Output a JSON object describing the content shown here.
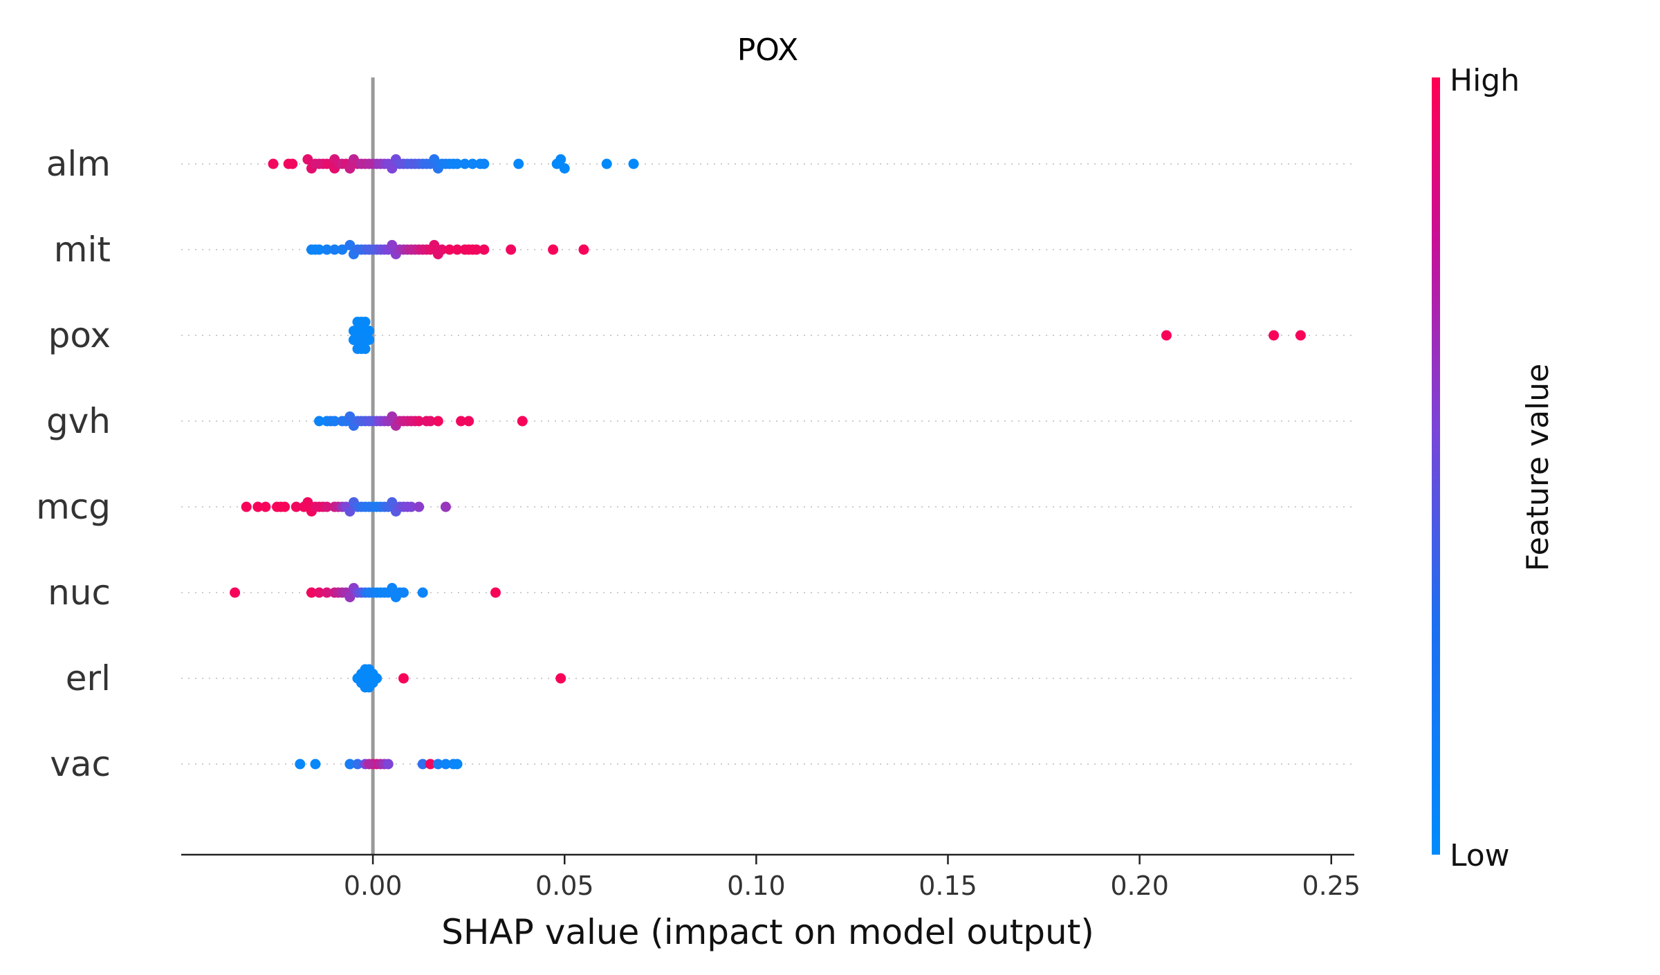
{
  "chart_data": {
    "type": "scatter",
    "subtype": "shap-beeswarm",
    "title": "POX",
    "xlabel": "SHAP value (impact on model output)",
    "xlim": [
      -0.05,
      0.256
    ],
    "xticks": [
      "0.00",
      "0.05",
      "0.10",
      "0.15",
      "0.20",
      "0.25"
    ],
    "xtick_values": [
      0.0,
      0.05,
      0.1,
      0.15,
      0.2,
      0.25
    ],
    "zero_line": 0.0,
    "colorbar": {
      "label": "Feature value",
      "high_label": "High",
      "low_label": "Low",
      "high_color": "#ff0052",
      "low_color": "#008bfb"
    },
    "features": [
      {
        "name": "alm",
        "points": [
          [
            -0.026,
            0.95
          ],
          [
            -0.022,
            0.95
          ],
          [
            -0.021,
            0.95
          ],
          [
            -0.017,
            0.9
          ],
          [
            -0.016,
            0.9
          ],
          [
            -0.015,
            0.85
          ],
          [
            -0.014,
            0.85
          ],
          [
            -0.013,
            0.85
          ],
          [
            -0.012,
            0.9
          ],
          [
            -0.011,
            0.9
          ],
          [
            -0.01,
            0.85
          ],
          [
            -0.01,
            0.9
          ],
          [
            -0.009,
            0.85
          ],
          [
            -0.008,
            0.8
          ],
          [
            -0.007,
            0.85
          ],
          [
            -0.006,
            0.8
          ],
          [
            -0.005,
            0.75
          ],
          [
            -0.004,
            0.8
          ],
          [
            -0.003,
            0.7
          ],
          [
            -0.002,
            0.75
          ],
          [
            -0.001,
            0.7
          ],
          [
            0.0,
            0.65
          ],
          [
            0.001,
            0.6
          ],
          [
            0.002,
            0.6
          ],
          [
            0.003,
            0.55
          ],
          [
            0.004,
            0.5
          ],
          [
            0.005,
            0.5
          ],
          [
            0.006,
            0.45
          ],
          [
            0.007,
            0.4
          ],
          [
            0.008,
            0.4
          ],
          [
            0.009,
            0.35
          ],
          [
            0.01,
            0.3
          ],
          [
            0.011,
            0.35
          ],
          [
            0.012,
            0.3
          ],
          [
            0.013,
            0.25
          ],
          [
            0.014,
            0.2
          ],
          [
            0.015,
            0.2
          ],
          [
            0.016,
            0.15
          ],
          [
            0.017,
            0.15
          ],
          [
            0.018,
            0.1
          ],
          [
            0.019,
            0.1
          ],
          [
            0.02,
            0.08
          ],
          [
            0.021,
            0.05
          ],
          [
            0.022,
            0.05
          ],
          [
            0.024,
            0.05
          ],
          [
            0.026,
            0.05
          ],
          [
            0.028,
            0.05
          ],
          [
            0.029,
            0.05
          ],
          [
            0.038,
            0.03
          ],
          [
            0.048,
            0.02
          ],
          [
            0.049,
            0.02
          ],
          [
            0.05,
            0.02
          ],
          [
            0.061,
            0.01
          ],
          [
            0.068,
            0.01
          ]
        ]
      },
      {
        "name": "mit",
        "points": [
          [
            -0.016,
            0.05
          ],
          [
            -0.015,
            0.05
          ],
          [
            -0.014,
            0.05
          ],
          [
            -0.012,
            0.08
          ],
          [
            -0.01,
            0.1
          ],
          [
            -0.008,
            0.1
          ],
          [
            -0.006,
            0.15
          ],
          [
            -0.005,
            0.15
          ],
          [
            -0.004,
            0.2
          ],
          [
            -0.003,
            0.2
          ],
          [
            -0.002,
            0.25
          ],
          [
            -0.001,
            0.3
          ],
          [
            0.0,
            0.35
          ],
          [
            0.001,
            0.35
          ],
          [
            0.002,
            0.4
          ],
          [
            0.003,
            0.45
          ],
          [
            0.004,
            0.5
          ],
          [
            0.005,
            0.55
          ],
          [
            0.006,
            0.55
          ],
          [
            0.007,
            0.6
          ],
          [
            0.008,
            0.65
          ],
          [
            0.009,
            0.7
          ],
          [
            0.01,
            0.75
          ],
          [
            0.011,
            0.75
          ],
          [
            0.012,
            0.8
          ],
          [
            0.013,
            0.85
          ],
          [
            0.014,
            0.85
          ],
          [
            0.015,
            0.9
          ],
          [
            0.016,
            0.9
          ],
          [
            0.017,
            0.9
          ],
          [
            0.018,
            0.9
          ],
          [
            0.02,
            0.95
          ],
          [
            0.022,
            0.95
          ],
          [
            0.024,
            0.95
          ],
          [
            0.025,
            0.95
          ],
          [
            0.026,
            0.95
          ],
          [
            0.027,
            0.95
          ],
          [
            0.029,
            0.95
          ],
          [
            0.036,
            0.95
          ],
          [
            0.047,
            0.97
          ],
          [
            0.055,
            0.97
          ]
        ]
      },
      {
        "name": "pox",
        "points": [
          [
            -0.005,
            0.02
          ],
          [
            -0.004,
            0.02
          ],
          [
            -0.003,
            0.02
          ],
          [
            -0.002,
            0.02
          ],
          [
            -0.001,
            0.02
          ],
          [
            -0.004,
            0.03
          ],
          [
            -0.003,
            0.03
          ],
          [
            -0.002,
            0.03
          ],
          [
            -0.005,
            0.02
          ],
          [
            -0.004,
            0.02
          ],
          [
            -0.003,
            0.02
          ],
          [
            -0.002,
            0.02
          ],
          [
            -0.001,
            0.02
          ],
          [
            -0.004,
            0.03
          ],
          [
            -0.003,
            0.03
          ],
          [
            -0.002,
            0.03
          ],
          [
            0.207,
            0.97
          ],
          [
            0.235,
            0.97
          ],
          [
            0.242,
            0.97
          ]
        ]
      },
      {
        "name": "gvh",
        "points": [
          [
            -0.014,
            0.05
          ],
          [
            -0.012,
            0.05
          ],
          [
            -0.011,
            0.1
          ],
          [
            -0.01,
            0.1
          ],
          [
            -0.008,
            0.15
          ],
          [
            -0.007,
            0.15
          ],
          [
            -0.006,
            0.2
          ],
          [
            -0.005,
            0.2
          ],
          [
            -0.004,
            0.25
          ],
          [
            -0.003,
            0.3
          ],
          [
            -0.002,
            0.3
          ],
          [
            -0.001,
            0.35
          ],
          [
            0.0,
            0.4
          ],
          [
            0.001,
            0.45
          ],
          [
            0.002,
            0.5
          ],
          [
            0.003,
            0.55
          ],
          [
            0.004,
            0.6
          ],
          [
            0.005,
            0.65
          ],
          [
            0.006,
            0.7
          ],
          [
            0.007,
            0.75
          ],
          [
            0.008,
            0.8
          ],
          [
            0.009,
            0.8
          ],
          [
            0.01,
            0.85
          ],
          [
            0.011,
            0.85
          ],
          [
            0.012,
            0.9
          ],
          [
            0.014,
            0.9
          ],
          [
            0.015,
            0.9
          ],
          [
            0.017,
            0.95
          ],
          [
            0.023,
            0.95
          ],
          [
            0.025,
            0.95
          ],
          [
            0.039,
            0.97
          ]
        ]
      },
      {
        "name": "mcg",
        "points": [
          [
            -0.033,
            0.97
          ],
          [
            -0.03,
            0.97
          ],
          [
            -0.028,
            0.97
          ],
          [
            -0.025,
            0.97
          ],
          [
            -0.024,
            0.97
          ],
          [
            -0.023,
            0.97
          ],
          [
            -0.02,
            0.95
          ],
          [
            -0.018,
            0.95
          ],
          [
            -0.017,
            0.95
          ],
          [
            -0.016,
            0.95
          ],
          [
            -0.015,
            0.9
          ],
          [
            -0.014,
            0.9
          ],
          [
            -0.013,
            0.9
          ],
          [
            -0.012,
            0.85
          ],
          [
            -0.01,
            0.8
          ],
          [
            -0.009,
            0.75
          ],
          [
            -0.008,
            0.6
          ],
          [
            -0.007,
            0.5
          ],
          [
            -0.006,
            0.4
          ],
          [
            -0.005,
            0.3
          ],
          [
            -0.004,
            0.25
          ],
          [
            -0.003,
            0.2
          ],
          [
            -0.002,
            0.15
          ],
          [
            -0.001,
            0.15
          ],
          [
            0.0,
            0.1
          ],
          [
            0.001,
            0.1
          ],
          [
            0.002,
            0.15
          ],
          [
            0.003,
            0.2
          ],
          [
            0.004,
            0.25
          ],
          [
            0.005,
            0.3
          ],
          [
            0.006,
            0.35
          ],
          [
            0.007,
            0.4
          ],
          [
            0.008,
            0.45
          ],
          [
            0.009,
            0.5
          ],
          [
            0.01,
            0.5
          ],
          [
            0.012,
            0.55
          ],
          [
            0.019,
            0.6
          ]
        ]
      },
      {
        "name": "nuc",
        "points": [
          [
            -0.036,
            0.97
          ],
          [
            -0.016,
            0.95
          ],
          [
            -0.014,
            0.9
          ],
          [
            -0.012,
            0.85
          ],
          [
            -0.01,
            0.8
          ],
          [
            -0.009,
            0.75
          ],
          [
            -0.008,
            0.7
          ],
          [
            -0.007,
            0.65
          ],
          [
            -0.006,
            0.6
          ],
          [
            -0.005,
            0.55
          ],
          [
            -0.004,
            0.45
          ],
          [
            -0.003,
            0.35
          ],
          [
            -0.002,
            0.2
          ],
          [
            -0.001,
            0.1
          ],
          [
            0.0,
            0.05
          ],
          [
            0.001,
            0.05
          ],
          [
            0.002,
            0.05
          ],
          [
            0.003,
            0.05
          ],
          [
            0.004,
            0.05
          ],
          [
            0.005,
            0.05
          ],
          [
            0.006,
            0.05
          ],
          [
            0.007,
            0.05
          ],
          [
            0.008,
            0.05
          ],
          [
            0.013,
            0.05
          ],
          [
            0.032,
            0.97
          ]
        ]
      },
      {
        "name": "erl",
        "points": [
          [
            -0.004,
            0.02
          ],
          [
            -0.003,
            0.02
          ],
          [
            -0.002,
            0.02
          ],
          [
            -0.001,
            0.02
          ],
          [
            0.0,
            0.02
          ],
          [
            0.001,
            0.02
          ],
          [
            -0.003,
            0.03
          ],
          [
            -0.002,
            0.03
          ],
          [
            -0.001,
            0.03
          ],
          [
            0.0,
            0.03
          ],
          [
            -0.002,
            0.02
          ],
          [
            -0.001,
            0.02
          ],
          [
            0.008,
            0.97
          ],
          [
            0.049,
            0.97
          ]
        ]
      },
      {
        "name": "vac",
        "points": [
          [
            -0.019,
            0.03
          ],
          [
            -0.015,
            0.03
          ],
          [
            -0.006,
            0.1
          ],
          [
            -0.004,
            0.2
          ],
          [
            -0.002,
            0.5
          ],
          [
            -0.001,
            0.7
          ],
          [
            0.0,
            0.85
          ],
          [
            0.001,
            0.8
          ],
          [
            0.002,
            0.7
          ],
          [
            0.003,
            0.6
          ],
          [
            0.004,
            0.5
          ],
          [
            0.013,
            0.2
          ],
          [
            0.015,
            0.95
          ],
          [
            0.017,
            0.1
          ],
          [
            0.019,
            0.05
          ],
          [
            0.021,
            0.05
          ],
          [
            0.022,
            0.03
          ]
        ]
      }
    ]
  }
}
